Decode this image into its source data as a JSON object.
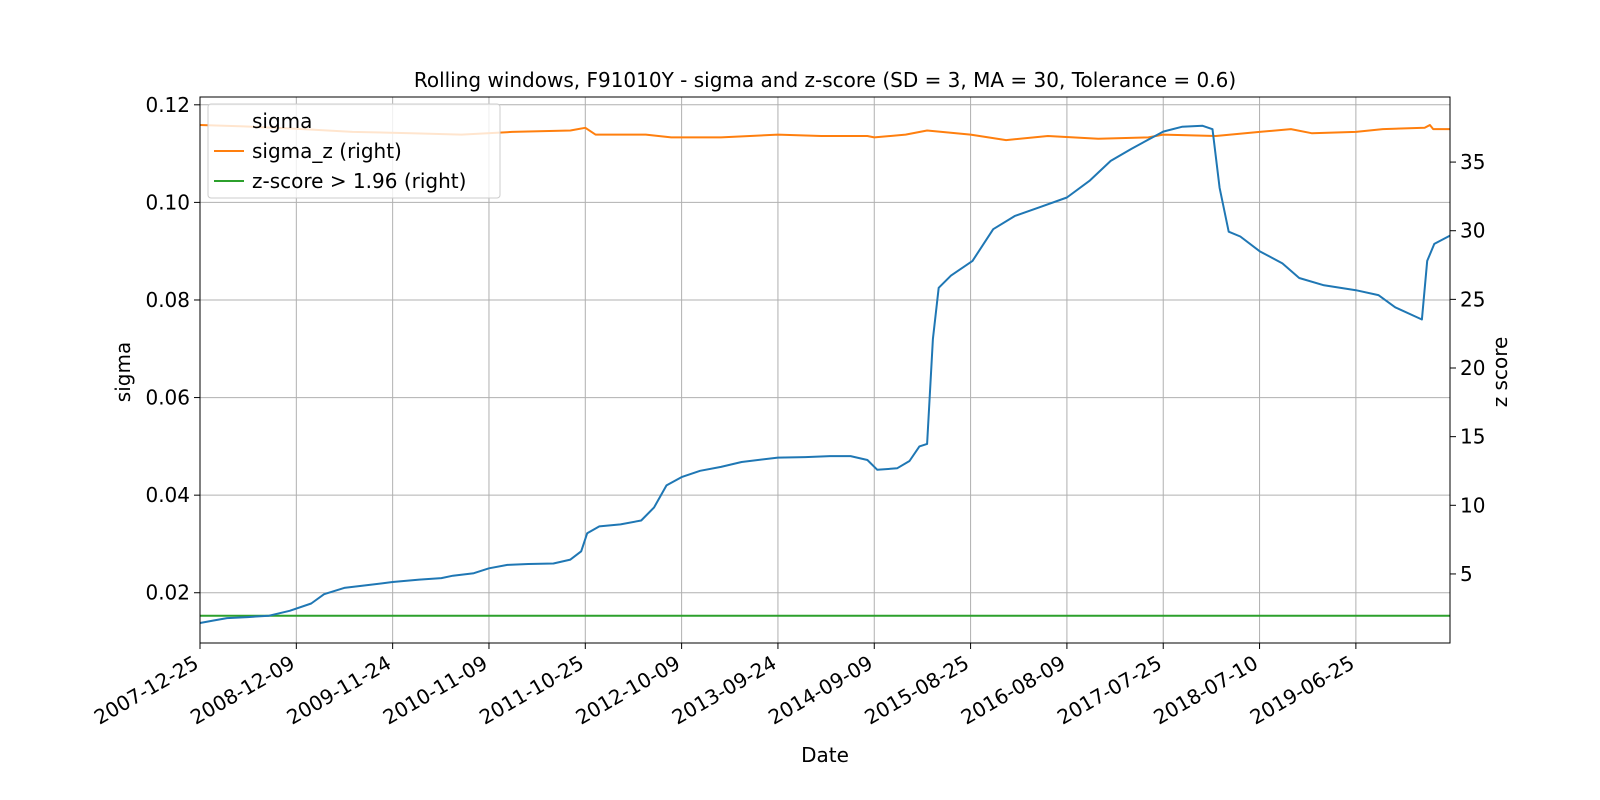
{
  "chart_data": {
    "type": "line",
    "title": "Rolling windows, F91010Y - sigma and z-score (SD = 3, MA = 30, Tolerance  = 0.6)",
    "xlabel": "Date",
    "ylabel_left": "sigma",
    "ylabel_right": "z score",
    "x_range": [
      "2007-12-25",
      "2020-06-01"
    ],
    "x_ticks": [
      "2007-12-25",
      "2008-12-09",
      "2009-11-24",
      "2010-11-09",
      "2011-10-25",
      "2012-10-09",
      "2013-09-24",
      "2014-09-09",
      "2015-08-25",
      "2016-08-09",
      "2017-07-25",
      "2018-07-10",
      "2019-06-25"
    ],
    "ylim_left": [
      0.0097,
      0.1216
    ],
    "ylim_right": [
      -0.03,
      39.74
    ],
    "y_ticks_left": [
      0.02,
      0.04,
      0.06,
      0.08,
      0.1,
      0.12
    ],
    "y_ticks_left_labels": [
      "0.02",
      "0.04",
      "0.06",
      "0.08",
      "0.10",
      "0.12"
    ],
    "y_ticks_right": [
      5,
      10,
      15,
      20,
      25,
      30,
      35
    ],
    "y_ticks_right_labels": [
      "5",
      "10",
      "15",
      "20",
      "25",
      "30",
      "35"
    ],
    "grid": true,
    "legend_position": "top-left",
    "series": [
      {
        "name": "sigma",
        "axis": "left",
        "color": "#1f77b4",
        "points": [
          [
            "2007-12-25",
            0.0138
          ],
          [
            "2008-02-10",
            0.0143
          ],
          [
            "2008-04-01",
            0.0148
          ],
          [
            "2008-06-15",
            0.015
          ],
          [
            "2008-09-01",
            0.0153
          ],
          [
            "2008-11-15",
            0.0163
          ],
          [
            "2009-02-01",
            0.0178
          ],
          [
            "2009-03-20",
            0.0197
          ],
          [
            "2009-06-01",
            0.021
          ],
          [
            "2009-09-01",
            0.0216
          ],
          [
            "2009-11-24",
            0.0222
          ],
          [
            "2010-03-01",
            0.0227
          ],
          [
            "2010-05-20",
            0.023
          ],
          [
            "2010-07-01",
            0.0235
          ],
          [
            "2010-09-15",
            0.024
          ],
          [
            "2010-11-09",
            0.025
          ],
          [
            "2011-01-15",
            0.0257
          ],
          [
            "2011-04-01",
            0.0259
          ],
          [
            "2011-07-01",
            0.026
          ],
          [
            "2011-09-01",
            0.0268
          ],
          [
            "2011-10-10",
            0.0285
          ],
          [
            "2011-11-01",
            0.0322
          ],
          [
            "2011-12-15",
            0.0336
          ],
          [
            "2012-03-01",
            0.034
          ],
          [
            "2012-05-15",
            0.0348
          ],
          [
            "2012-07-01",
            0.0375
          ],
          [
            "2012-08-15",
            0.042
          ],
          [
            "2012-10-09",
            0.0437
          ],
          [
            "2012-12-15",
            0.045
          ],
          [
            "2013-03-01",
            0.0458
          ],
          [
            "2013-05-15",
            0.0468
          ],
          [
            "2013-09-24",
            0.0477
          ],
          [
            "2014-01-01",
            0.0478
          ],
          [
            "2014-04-01",
            0.048
          ],
          [
            "2014-06-15",
            0.048
          ],
          [
            "2014-08-15",
            0.0472
          ],
          [
            "2014-09-20",
            0.0452
          ],
          [
            "2014-12-01",
            0.0455
          ],
          [
            "2015-01-15",
            0.047
          ],
          [
            "2015-02-20",
            0.05
          ],
          [
            "2015-03-20",
            0.0505
          ],
          [
            "2015-04-10",
            0.072
          ],
          [
            "2015-05-01",
            0.0825
          ],
          [
            "2015-06-15",
            0.085
          ],
          [
            "2015-09-01",
            0.088
          ],
          [
            "2015-11-15",
            0.0945
          ],
          [
            "2016-02-01",
            0.0972
          ],
          [
            "2016-05-01",
            0.099
          ],
          [
            "2016-08-09",
            0.101
          ],
          [
            "2016-11-01",
            0.1045
          ],
          [
            "2017-01-15",
            0.1085
          ],
          [
            "2017-04-01",
            0.111
          ],
          [
            "2017-07-25",
            0.1145
          ],
          [
            "2017-10-01",
            0.1155
          ],
          [
            "2017-12-15",
            0.1157
          ],
          [
            "2018-01-20",
            0.115
          ],
          [
            "2018-02-15",
            0.103
          ],
          [
            "2018-03-20",
            0.094
          ],
          [
            "2018-05-01",
            0.093
          ],
          [
            "2018-07-10",
            0.09
          ],
          [
            "2018-10-01",
            0.0875
          ],
          [
            "2018-12-01",
            0.0845
          ],
          [
            "2019-03-01",
            0.083
          ],
          [
            "2019-06-25",
            0.082
          ],
          [
            "2019-09-15",
            0.081
          ],
          [
            "2019-11-15",
            0.0785
          ],
          [
            "2020-02-01",
            0.0765
          ],
          [
            "2020-02-20",
            0.076
          ],
          [
            "2020-03-10",
            0.088
          ],
          [
            "2020-04-05",
            0.0915
          ],
          [
            "2020-06-01",
            0.0932
          ]
        ]
      },
      {
        "name": "sigma_z (right)",
        "axis": "right",
        "color": "#ff7f0e",
        "points": [
          [
            "2007-12-25",
            37.7
          ],
          [
            "2008-06-01",
            37.6
          ],
          [
            "2009-01-01",
            37.4
          ],
          [
            "2009-07-01",
            37.2
          ],
          [
            "2010-02-01",
            37.1
          ],
          [
            "2010-08-01",
            37.0
          ],
          [
            "2011-02-01",
            37.2
          ],
          [
            "2011-09-01",
            37.3
          ],
          [
            "2011-10-25",
            37.5
          ],
          [
            "2011-12-01",
            37.0
          ],
          [
            "2012-06-01",
            37.0
          ],
          [
            "2012-09-01",
            36.8
          ],
          [
            "2013-03-01",
            36.8
          ],
          [
            "2013-09-24",
            37.0
          ],
          [
            "2014-03-01",
            36.9
          ],
          [
            "2014-08-15",
            36.9
          ],
          [
            "2014-09-09",
            36.8
          ],
          [
            "2015-01-01",
            37.0
          ],
          [
            "2015-03-20",
            37.3
          ],
          [
            "2015-08-25",
            37.0
          ],
          [
            "2016-01-01",
            36.6
          ],
          [
            "2016-06-01",
            36.9
          ],
          [
            "2016-12-01",
            36.7
          ],
          [
            "2017-06-01",
            36.8
          ],
          [
            "2017-07-25",
            37.0
          ],
          [
            "2018-02-01",
            36.9
          ],
          [
            "2018-07-10",
            37.2
          ],
          [
            "2018-11-01",
            37.4
          ],
          [
            "2019-01-15",
            37.1
          ],
          [
            "2019-06-25",
            37.2
          ],
          [
            "2019-10-01",
            37.4
          ],
          [
            "2020-03-01",
            37.5
          ],
          [
            "2020-03-20",
            37.7
          ],
          [
            "2020-04-01",
            37.4
          ],
          [
            "2020-06-01",
            37.4
          ]
        ]
      },
      {
        "name": "z-score > 1.96 (right)",
        "axis": "right",
        "color": "#2ca02c",
        "points": [
          [
            "2007-12-25",
            1.96
          ],
          [
            "2020-06-01",
            1.96
          ]
        ]
      }
    ]
  }
}
